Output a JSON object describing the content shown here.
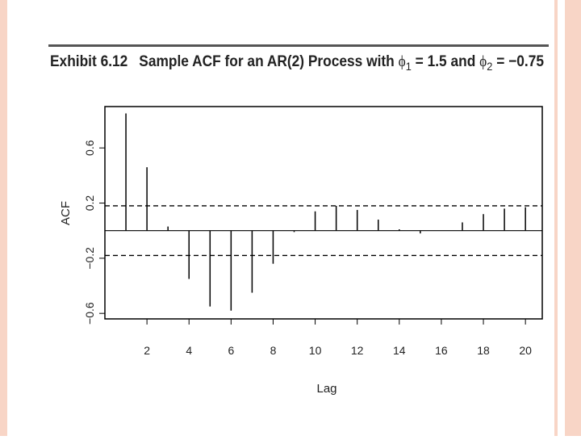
{
  "chart_data": {
    "type": "acf",
    "title_parts": [
      "Exhibit 6.12",
      "Sample ACF for an AR(2) Process with",
      "ϕ",
      "1",
      "= 1.5 and",
      "ϕ",
      "2",
      "= −0.75"
    ],
    "x_label": "Lag",
    "y_label": "ACF",
    "x": [
      1,
      2,
      3,
      4,
      5,
      6,
      7,
      8,
      9,
      10,
      11,
      12,
      13,
      14,
      15,
      16,
      17,
      18,
      19,
      20
    ],
    "values": [
      0.85,
      0.46,
      0.03,
      -0.35,
      -0.55,
      -0.58,
      -0.45,
      -0.24,
      -0.01,
      0.14,
      0.18,
      0.15,
      0.08,
      0.01,
      -0.02,
      0.0,
      0.06,
      0.12,
      0.16,
      0.17
    ],
    "conf_limit": 0.18,
    "xlim": [
      0,
      20.8
    ],
    "ylim": [
      -0.64,
      0.9
    ],
    "xticks": [
      2,
      4,
      6,
      8,
      10,
      12,
      14,
      16,
      18,
      20
    ],
    "yticks": [
      {
        "value": -0.6,
        "label": "−0.6"
      },
      {
        "value": -0.2,
        "label": "−0.2"
      },
      0.2,
      0.6
    ],
    "color": "#000000"
  }
}
